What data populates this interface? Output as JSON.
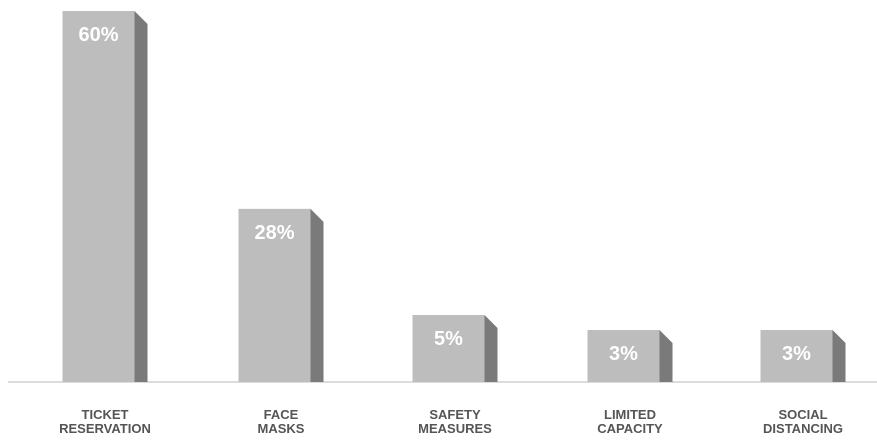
{
  "chart_data": {
    "type": "bar",
    "categories": [
      [
        "TICKET",
        "RESERVATION"
      ],
      [
        "FACE",
        "MASKS"
      ],
      [
        "SAFETY",
        "MEASURES"
      ],
      [
        "LIMITED",
        "CAPACITY"
      ],
      [
        "SOCIAL",
        "DISTANCING"
      ]
    ],
    "values": [
      60,
      28,
      5,
      3,
      3
    ],
    "value_labels": [
      "60%",
      "28%",
      "5%",
      "3%",
      "3%"
    ],
    "title": "",
    "xlabel": "",
    "ylabel": "",
    "ylim": [
      0,
      60
    ],
    "grid": false,
    "colors": {
      "bar_front": "#bdbdbd",
      "bar_side": "#7a7a7a",
      "label": "#ffffff",
      "category": "#555555"
    }
  }
}
